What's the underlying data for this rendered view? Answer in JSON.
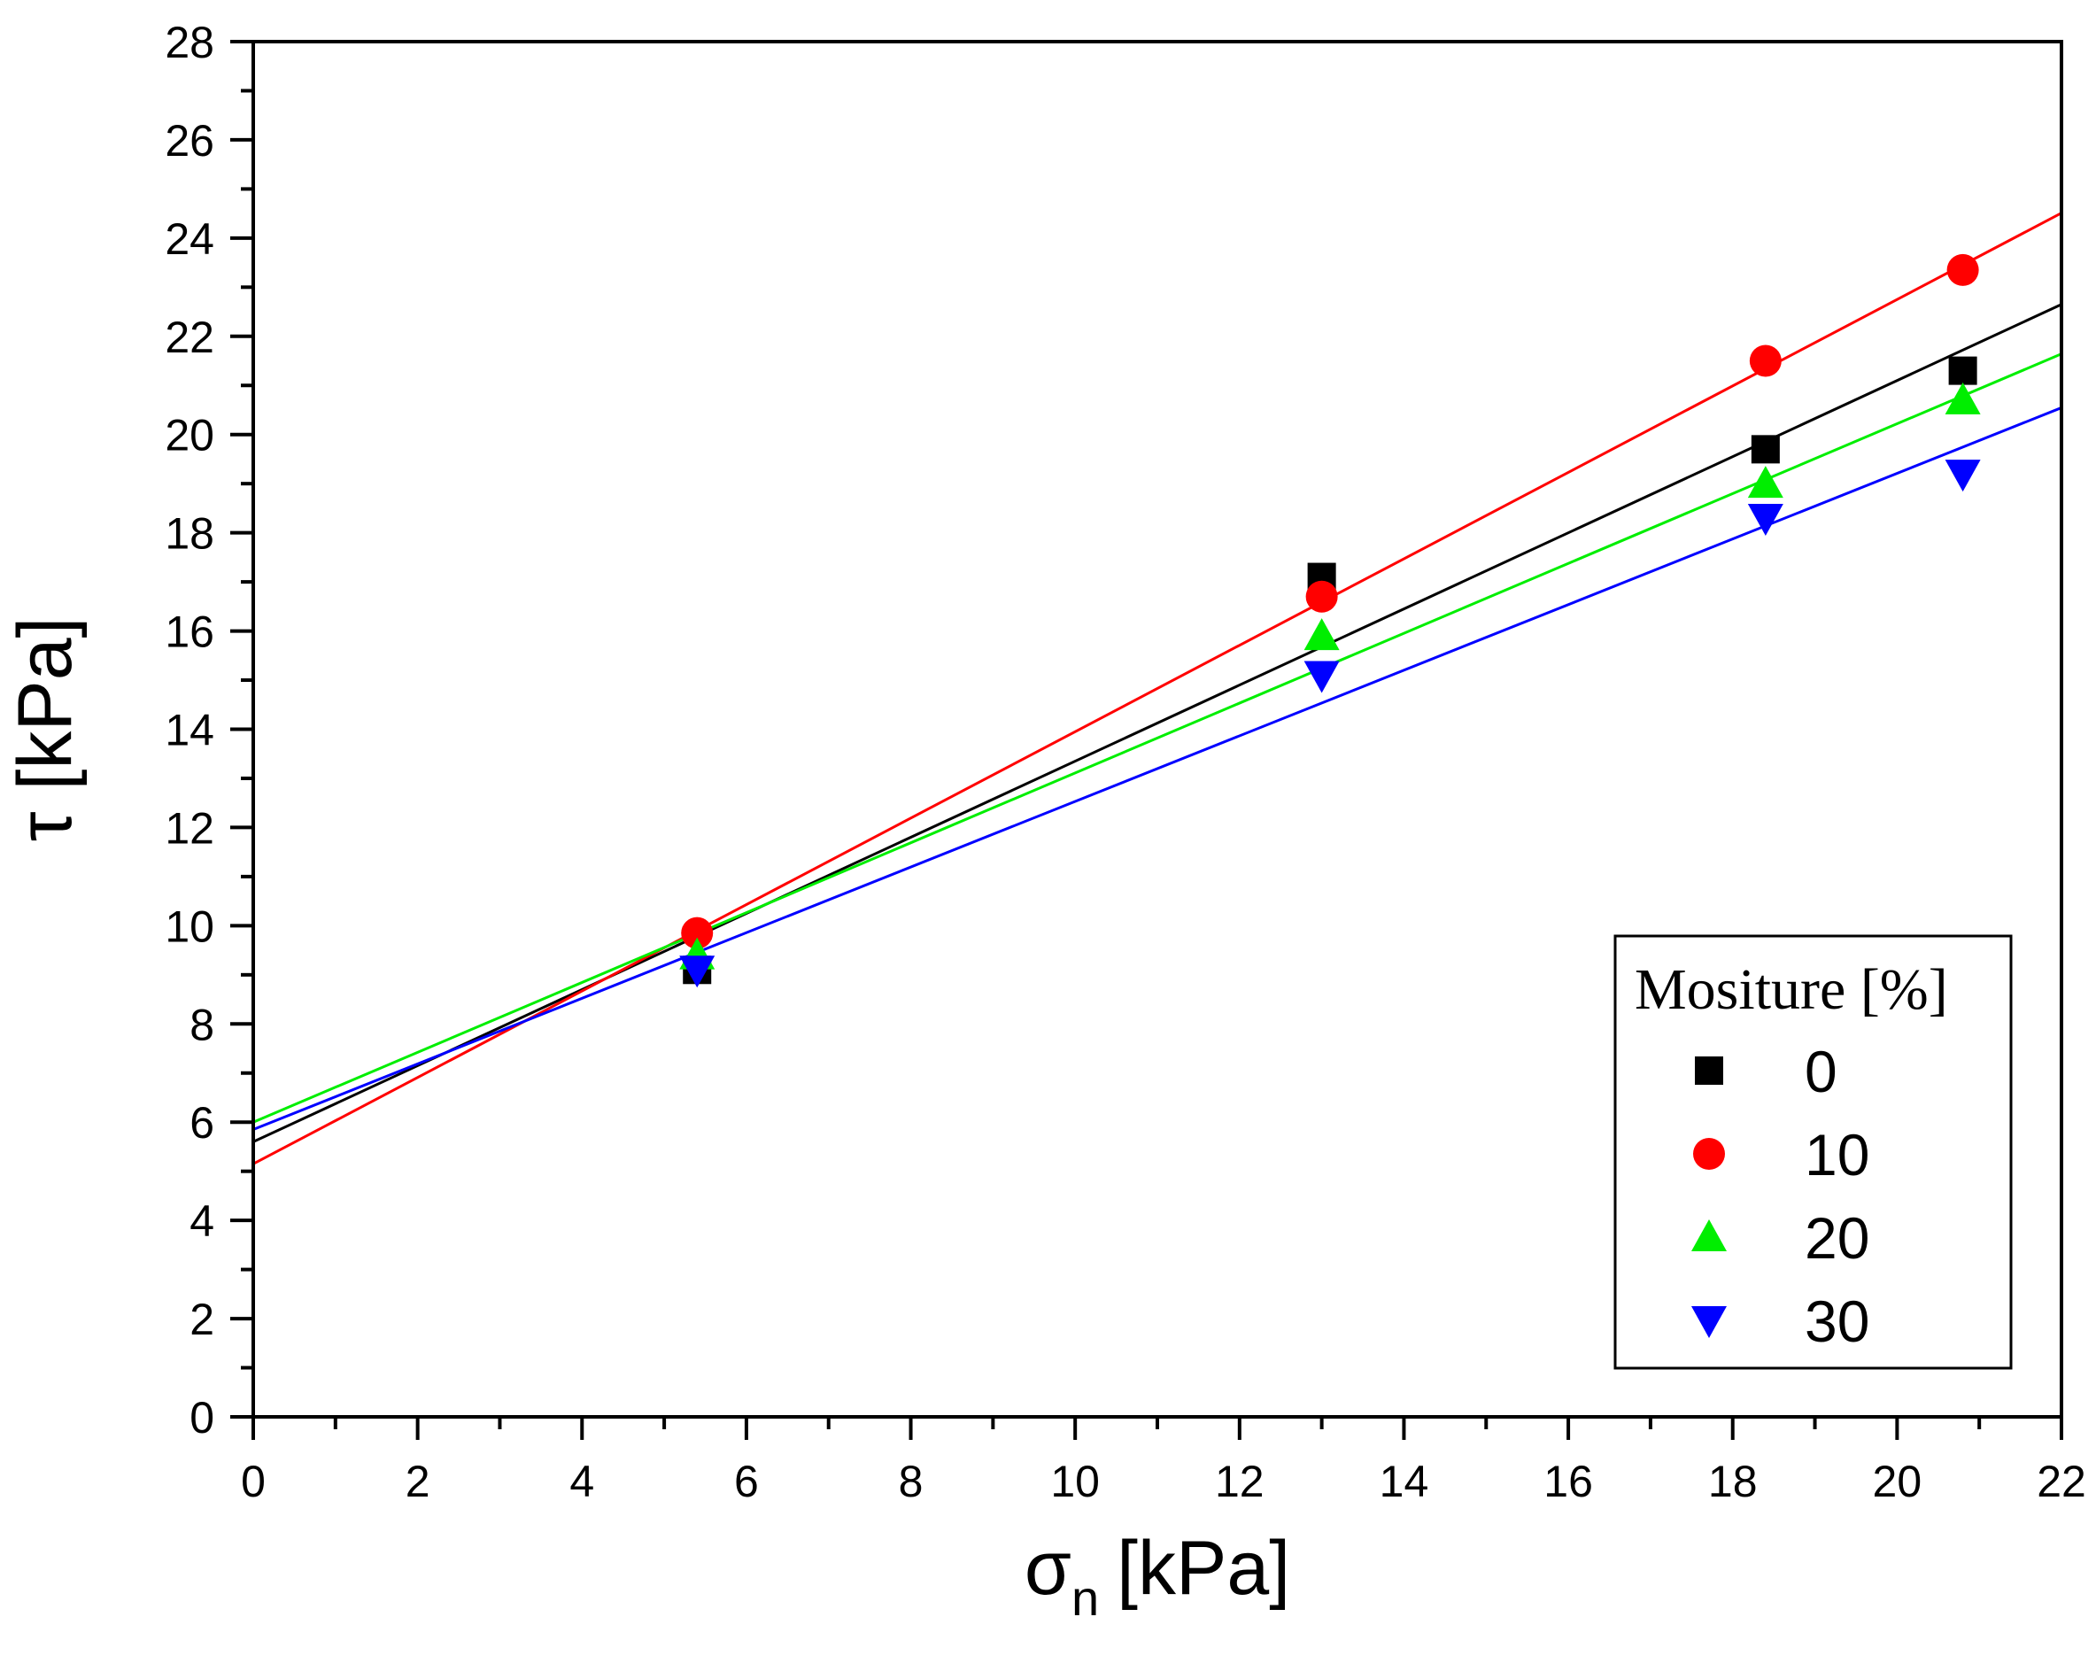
{
  "chart_data": {
    "type": "scatter",
    "title": "",
    "xlabel": "[kPa]",
    "xlabel_symbol": "σ",
    "xlabel_subscript": "n",
    "ylabel": "τ [kPa]",
    "xlim": [
      0,
      22
    ],
    "ylim": [
      0,
      28
    ],
    "x_ticks": [
      0,
      2,
      4,
      6,
      8,
      10,
      12,
      14,
      16,
      18,
      20,
      22
    ],
    "y_ticks": [
      0,
      2,
      4,
      6,
      8,
      10,
      12,
      14,
      16,
      18,
      20,
      22,
      24,
      26,
      28
    ],
    "x_tick_labels": [
      "0",
      "2",
      "4",
      "6",
      "8",
      "10",
      "12",
      "14",
      "16",
      "18",
      "20",
      "22"
    ],
    "y_tick_labels": [
      "0",
      "2",
      "4",
      "6",
      "8",
      "10",
      "12",
      "14",
      "16",
      "18",
      "20",
      "22",
      "24",
      "26",
      "28"
    ],
    "grid": false,
    "legend": {
      "title": "Mositure [%]",
      "position": "bottom-right"
    },
    "x": [
      5.4,
      13.0,
      18.4,
      20.8
    ],
    "series": [
      {
        "name": "0",
        "marker": "square",
        "color": "#000000",
        "values": [
          9.1,
          17.1,
          19.7,
          21.3
        ],
        "fit": {
          "intercept": 5.6,
          "slope": 0.775
        }
      },
      {
        "name": "10",
        "marker": "circle",
        "color": "#ff0000",
        "values": [
          9.85,
          16.7,
          21.5,
          23.35
        ],
        "fit": {
          "intercept": 5.15,
          "slope": 0.88
        }
      },
      {
        "name": "20",
        "marker": "triangle-up",
        "color": "#00ee00",
        "values": [
          9.4,
          15.9,
          19.0,
          20.7
        ],
        "fit": {
          "intercept": 6.0,
          "slope": 0.711
        }
      },
      {
        "name": "30",
        "marker": "triangle-down",
        "color": "#0000ff",
        "values": [
          9.1,
          15.1,
          18.3,
          19.2
        ],
        "fit": {
          "intercept": 5.85,
          "slope": 0.668
        }
      }
    ]
  }
}
